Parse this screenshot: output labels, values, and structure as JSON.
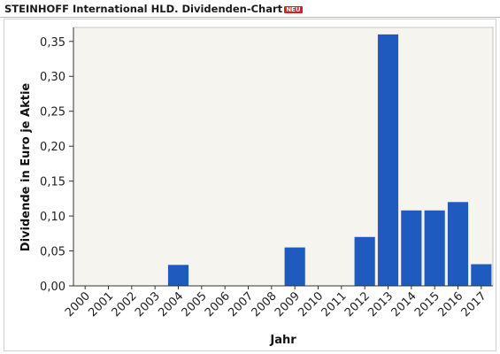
{
  "header": {
    "title": "STEINHOFF International HLD. Dividenden-Chart",
    "badge": "NEU"
  },
  "chart_data": {
    "type": "bar",
    "title": "",
    "xlabel": "Jahr",
    "ylabel": "Dividende in Euro je Aktie",
    "categories": [
      "2000",
      "2001",
      "2002",
      "2003",
      "2004",
      "2005",
      "2006",
      "2007",
      "2008",
      "2009",
      "2010",
      "2011",
      "2012",
      "2013",
      "2014",
      "2015",
      "2016",
      "2017"
    ],
    "values": [
      0,
      0,
      0,
      0,
      0.03,
      0,
      0,
      0,
      0,
      0.055,
      0,
      0,
      0.07,
      0.36,
      0.108,
      0.108,
      0.12,
      0.031
    ],
    "ylim": [
      0,
      0.37
    ],
    "yticks": [
      "0,00",
      "0,05",
      "0,10",
      "0,15",
      "0,20",
      "0,25",
      "0,30",
      "0,35"
    ],
    "ytick_values": [
      0,
      0.05,
      0.1,
      0.15,
      0.2,
      0.25,
      0.3,
      0.35
    ],
    "grid": false,
    "colors": {
      "bar": "#1f5bbf",
      "plot_background": "#f6f4ef"
    }
  }
}
